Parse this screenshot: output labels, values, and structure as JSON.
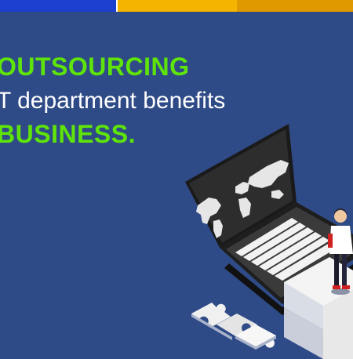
{
  "banner": {
    "stripe_colors": [
      "#1d3fd0",
      "#ffffff",
      "#f5b400",
      "#e09a00"
    ],
    "background_color": "#2f4b87",
    "accent_color": "#5fe40a"
  },
  "headline": {
    "line1": "OUTSOURCING",
    "line2": "T department benefits",
    "line3": "BUSINESS."
  },
  "illustration": {
    "laptop_icon": "laptop-world-map-icon",
    "person_icon": "business-person-icon",
    "puzzle_icon": "puzzle-piece-icon"
  }
}
